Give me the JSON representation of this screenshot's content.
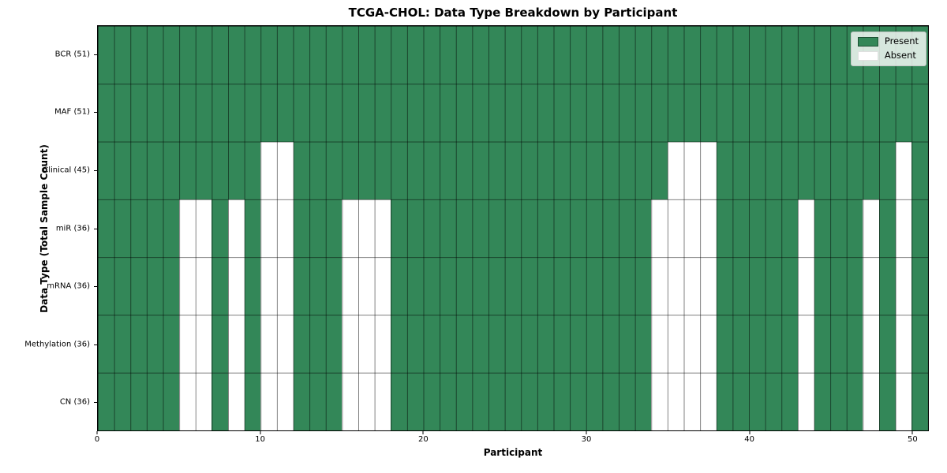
{
  "chart_data": {
    "type": "heatmap",
    "title": "TCGA-CHOL: Data Type Breakdown by Participant",
    "xlabel": "Participant",
    "ylabel": "Data Type (Total Sample Count)",
    "n_participants": 51,
    "x_ticks": [
      0,
      10,
      20,
      30,
      40,
      50
    ],
    "rows": [
      {
        "label": "BCR (51)",
        "total": 51,
        "absent_columns": []
      },
      {
        "label": "MAF (51)",
        "total": 51,
        "absent_columns": []
      },
      {
        "label": "Clinical (45)",
        "total": 45,
        "absent_columns": [
          10,
          11,
          35,
          36,
          37,
          49
        ]
      },
      {
        "label": "miR (36)",
        "total": 36,
        "absent_columns": [
          5,
          6,
          8,
          10,
          11,
          15,
          16,
          17,
          34,
          35,
          36,
          37,
          43,
          47,
          49
        ]
      },
      {
        "label": "mRNA (36)",
        "total": 36,
        "absent_columns": [
          5,
          6,
          8,
          10,
          11,
          15,
          16,
          17,
          34,
          35,
          36,
          37,
          43,
          47,
          49
        ]
      },
      {
        "label": "Methylation (36)",
        "total": 36,
        "absent_columns": [
          5,
          6,
          8,
          10,
          11,
          15,
          16,
          17,
          34,
          35,
          36,
          37,
          43,
          47,
          49
        ]
      },
      {
        "label": "CN (36)",
        "total": 36,
        "absent_columns": [
          5,
          6,
          8,
          10,
          11,
          15,
          16,
          17,
          34,
          35,
          36,
          37,
          43,
          47,
          49
        ]
      }
    ],
    "legend": [
      {
        "label": "Present",
        "state": "present"
      },
      {
        "label": "Absent",
        "state": "absent"
      }
    ],
    "colors": {
      "present": "#338758",
      "absent": "#ffffff",
      "grid": "rgba(0,0,0,0.5)",
      "spine": "#000000"
    },
    "layout": {
      "grid": "on",
      "legend_position": "upper right"
    }
  }
}
